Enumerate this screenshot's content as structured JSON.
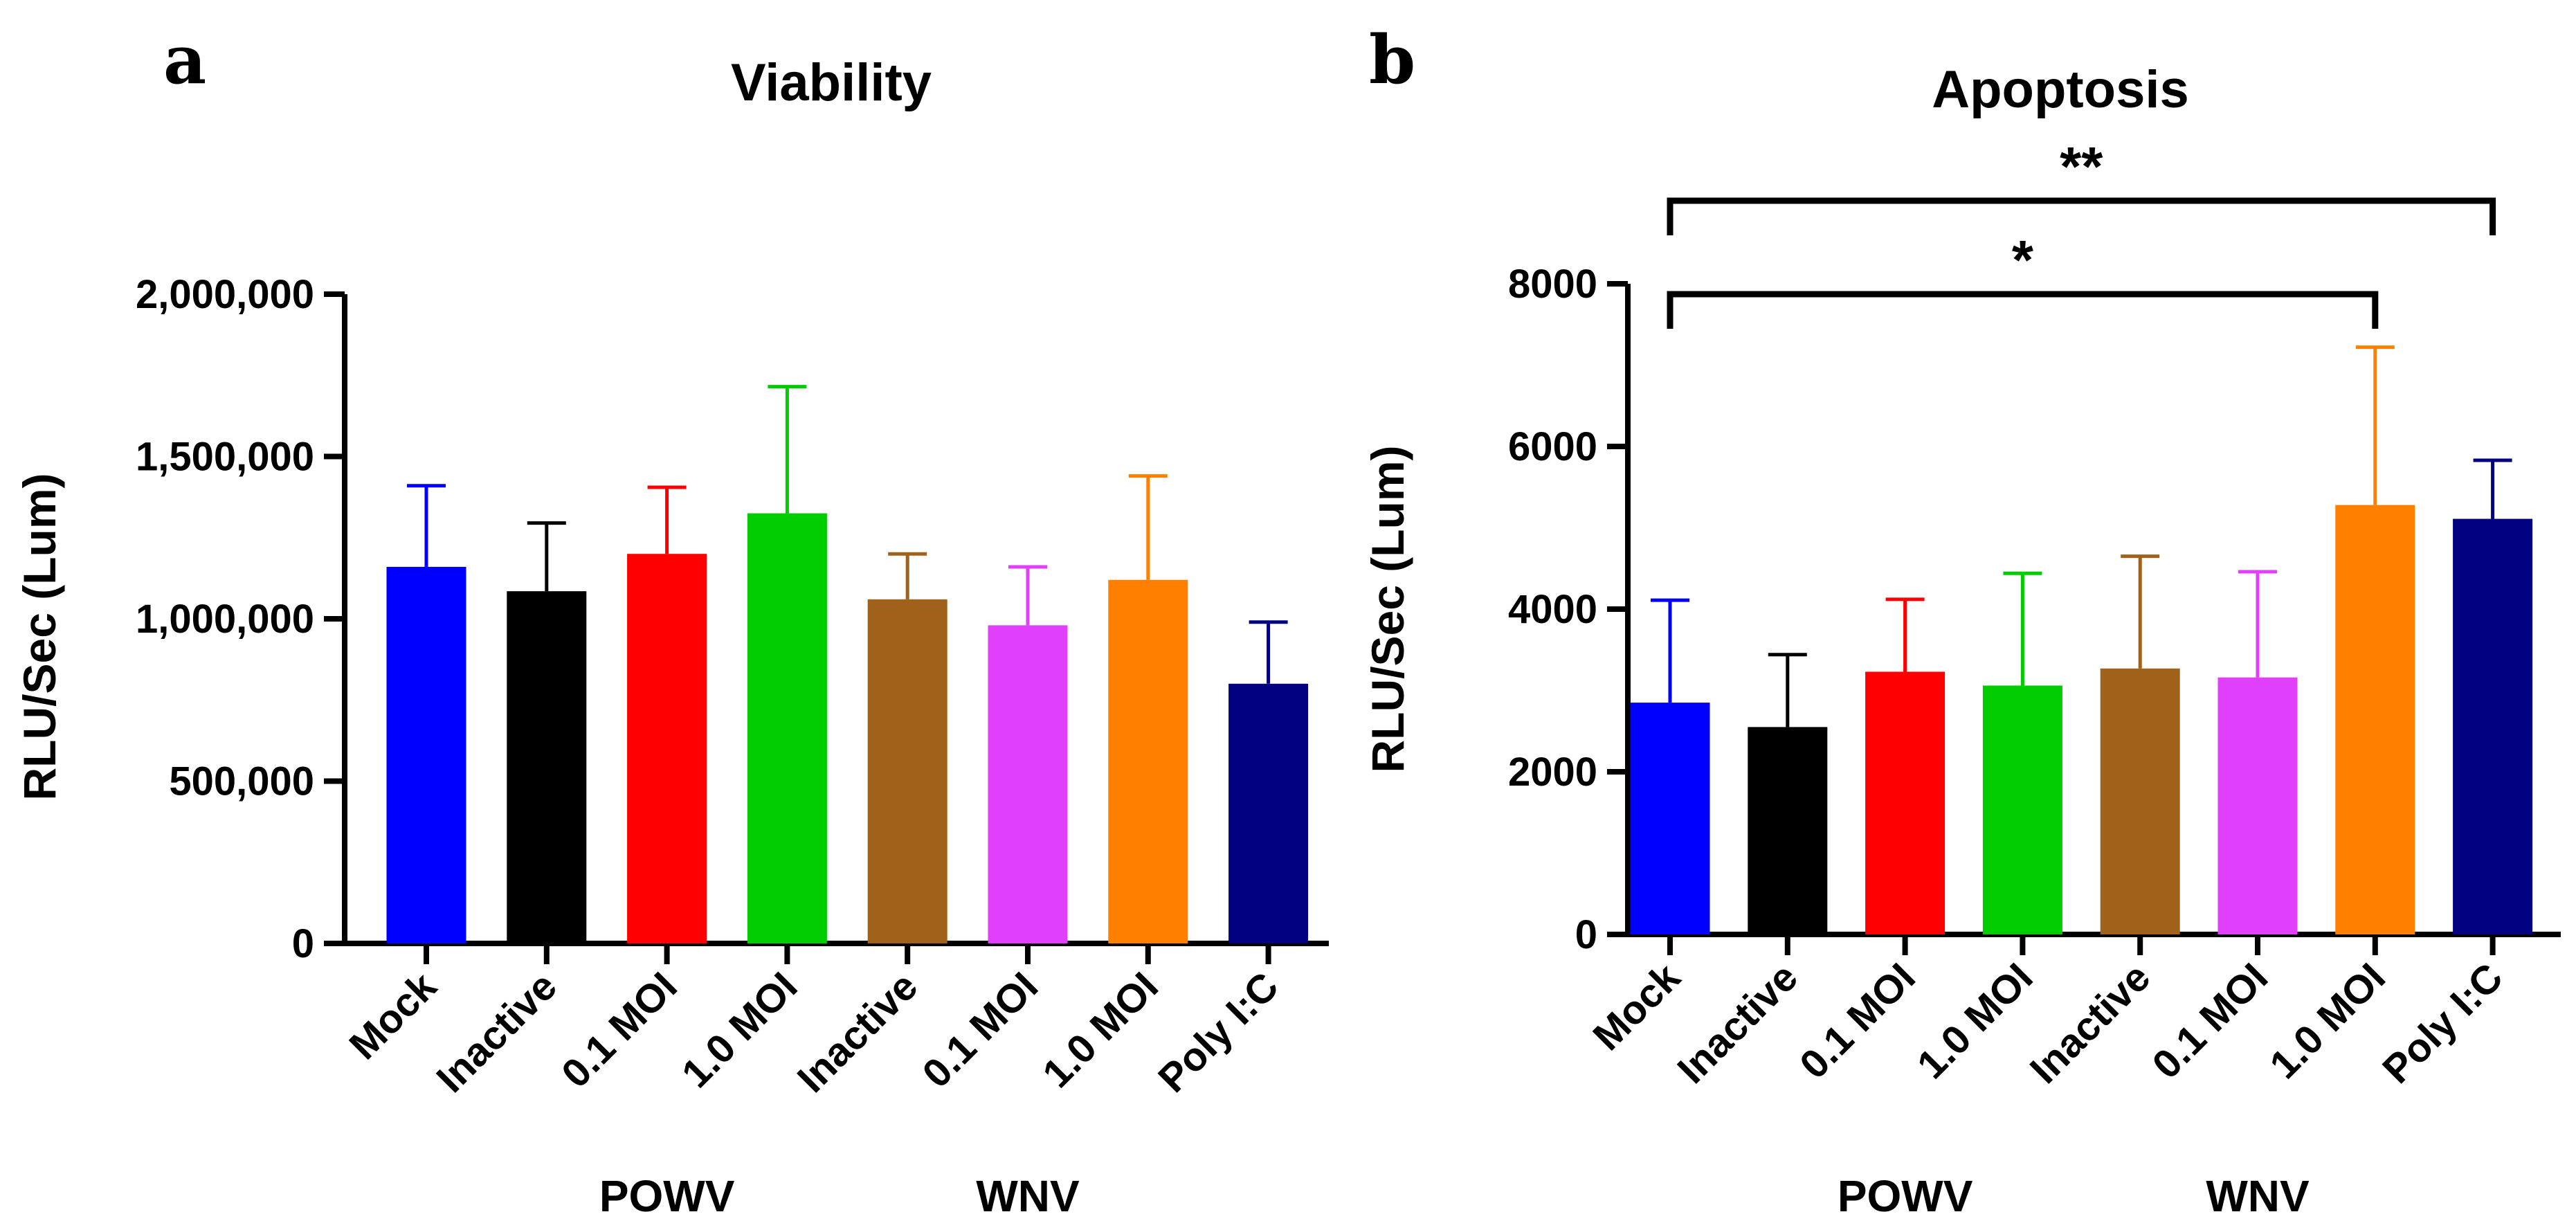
{
  "chart_data": [
    {
      "panel": "a",
      "type": "bar",
      "title": "Viability",
      "xlabel": "",
      "ylabel": "RLU/Sec (Lum)",
      "ylim": [
        0,
        2000000
      ],
      "yticks": [
        0,
        500000,
        1000000,
        1500000,
        2000000
      ],
      "ytick_labels": [
        "0",
        "500,000",
        "1,000,000",
        "1,500,000",
        "2,000,000"
      ],
      "categories": [
        "Mock",
        "Inactive",
        "0.1 MOI",
        "1.0 MOI",
        "Inactive",
        "0.1 MOI",
        "1.0 MOI",
        "Poly I:C"
      ],
      "values": [
        1160000,
        1085000,
        1200000,
        1325000,
        1060000,
        980000,
        1120000,
        800000
      ],
      "errors": [
        250000,
        210000,
        205000,
        390000,
        140000,
        180000,
        320000,
        190000
      ],
      "colors": [
        "#0000ff",
        "#000000",
        "#ff0000",
        "#00cc00",
        "#a0611a",
        "#e040fb",
        "#ff8000",
        "#000080"
      ],
      "groups": [
        {
          "label": "POWV",
          "start": 1,
          "end": 3
        },
        {
          "label": "WNV",
          "start": 4,
          "end": 6
        }
      ]
    },
    {
      "panel": "b",
      "type": "bar",
      "title": "Apoptosis",
      "xlabel": "",
      "ylabel": "RLU/Sec (Lum)",
      "ylim": [
        0,
        8000
      ],
      "yticks": [
        0,
        2000,
        4000,
        6000,
        8000
      ],
      "ytick_labels": [
        "0",
        "2000",
        "4000",
        "6000",
        "8000"
      ],
      "categories": [
        "Mock",
        "Inactive",
        "0.1 MOI",
        "1.0 MOI",
        "Inactive",
        "0.1 MOI",
        "1.0 MOI",
        "Poly I:C"
      ],
      "values": [
        2850,
        2550,
        3230,
        3060,
        3270,
        3160,
        5280,
        5110
      ],
      "errors": [
        1260,
        890,
        890,
        1380,
        1380,
        1300,
        1940,
        720
      ],
      "colors": [
        "#0000ff",
        "#000000",
        "#ff0000",
        "#00cc00",
        "#a0611a",
        "#e040fb",
        "#ff8000",
        "#000080"
      ],
      "groups": [
        {
          "label": "POWV",
          "start": 1,
          "end": 3
        },
        {
          "label": "WNV",
          "start": 4,
          "end": 6
        }
      ],
      "significance": [
        {
          "from": 0,
          "to": 7,
          "label": "**"
        },
        {
          "from": 0,
          "to": 6,
          "label": "*"
        }
      ]
    }
  ]
}
